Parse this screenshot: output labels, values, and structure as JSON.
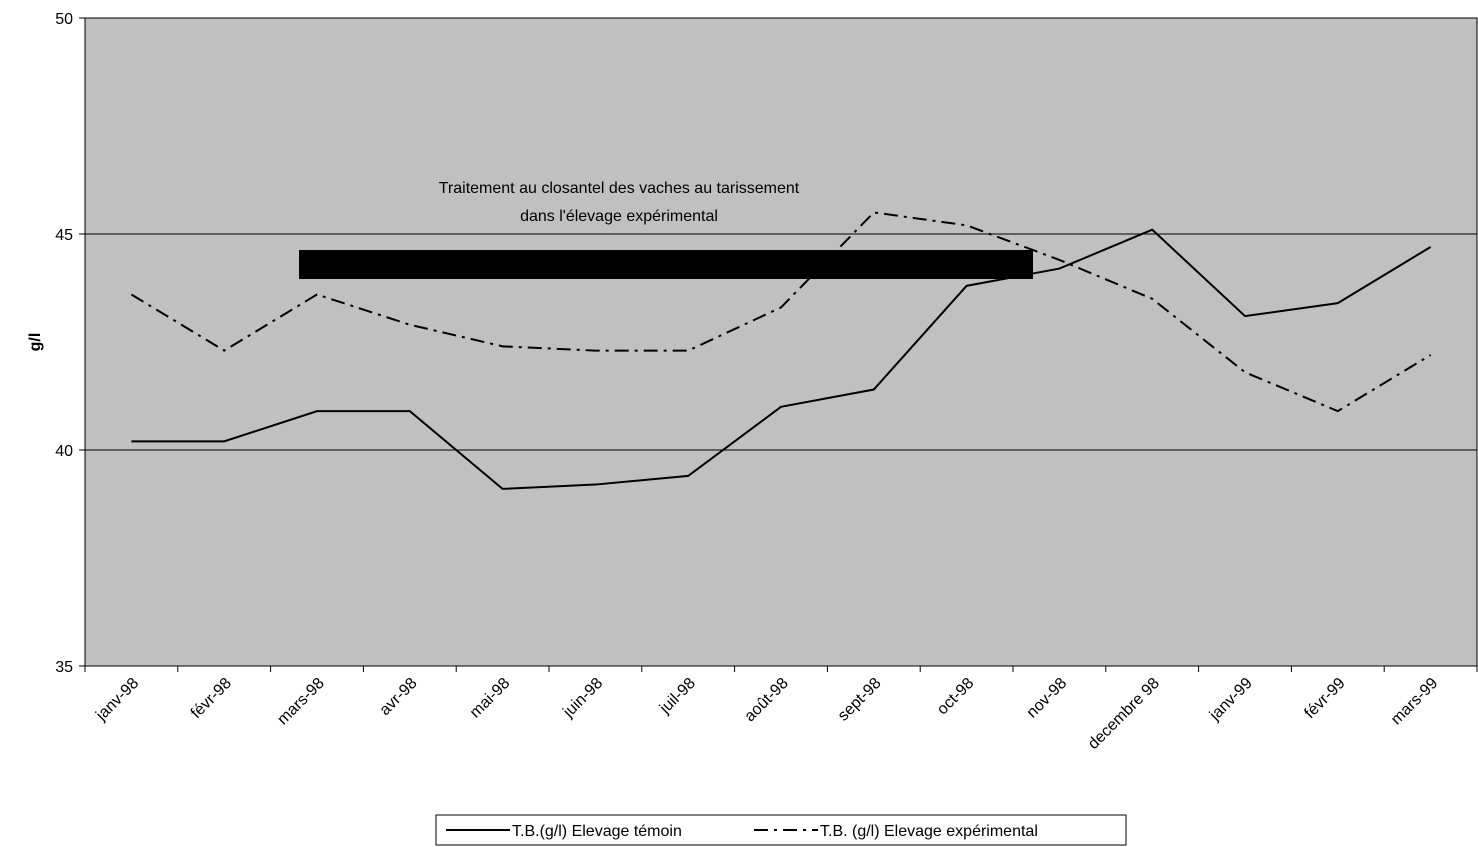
{
  "chart_data": {
    "type": "line",
    "y_label": "g/l",
    "categories": [
      "janv-98",
      "févr-98",
      "mars-98",
      "avr-98",
      "mai-98",
      "juin-98",
      "juil-98",
      "août-98",
      "sept-98",
      "oct-98",
      "nov-98",
      "decembre 98",
      "janv-99",
      "févr-99",
      "mars-99"
    ],
    "series": [
      {
        "name": "T.B.(g/l) Elevage témoin",
        "color": "#000000",
        "line_style": "solid",
        "values": [
          40.2,
          40.2,
          40.9,
          40.9,
          39.1,
          39.2,
          39.4,
          41.0,
          41.4,
          43.8,
          44.2,
          45.1,
          43.1,
          43.4,
          44.7
        ]
      },
      {
        "name": "T.B. (g/l) Elevage expérimental",
        "color": "#000000",
        "line_style": "dashdot",
        "values": [
          43.6,
          42.3,
          43.6,
          42.9,
          42.4,
          42.3,
          42.3,
          43.3,
          45.5,
          45.2,
          44.4,
          43.5,
          41.8,
          40.9,
          42.2
        ]
      }
    ],
    "annotation": [
      "Traitement au closantel des vaches au tarissement",
      "dans l'élevage expérimental"
    ],
    "ylim": [
      35,
      50
    ],
    "yticks": [
      35,
      40,
      45,
      50
    ],
    "grid": true,
    "plot_background": "#c0c0c0",
    "legend": "bottom"
  }
}
